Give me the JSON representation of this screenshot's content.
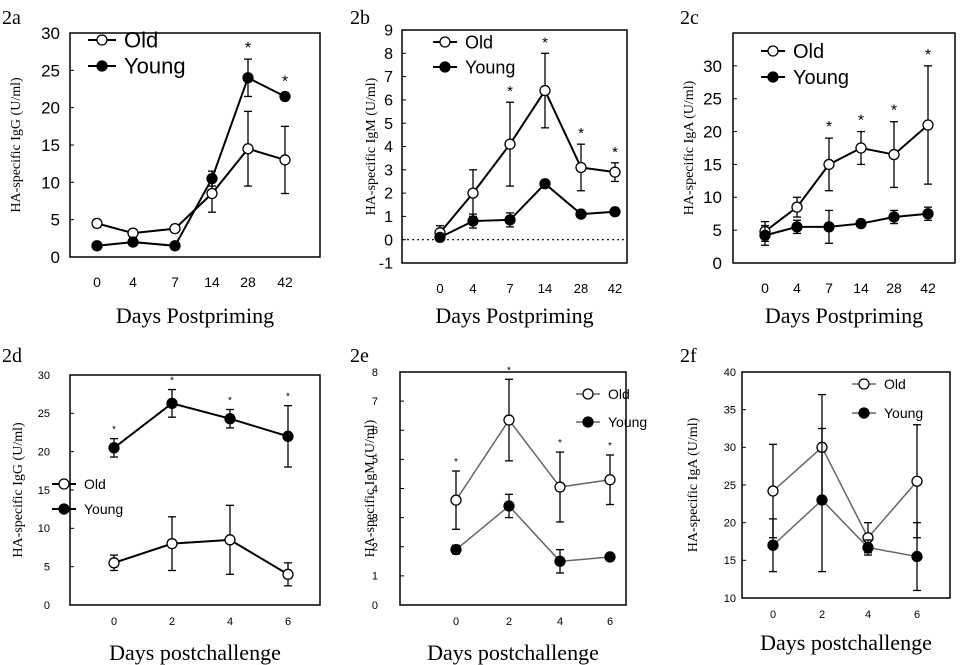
{
  "chart_data": [
    {
      "panel": "2a",
      "type": "line",
      "ylabel": "HA-specific IgG (U/ml)",
      "xlabel": "Days Postpriming",
      "categories": [
        "0",
        "4",
        "7",
        "14",
        "28",
        "42"
      ],
      "ylim": [
        0,
        30
      ],
      "yticks": [
        "0",
        "5",
        "10",
        "15",
        "20",
        "25",
        "30"
      ],
      "series": [
        {
          "name": "Old",
          "marker": "open",
          "values": [
            4.5,
            3.2,
            3.8,
            8.5,
            14.5,
            13
          ],
          "err": [
            0.5,
            0.5,
            0.5,
            2.5,
            5,
            4.5
          ]
        },
        {
          "name": "Young",
          "marker": "filled",
          "values": [
            1.5,
            2,
            1.5,
            10.5,
            24,
            21.5
          ],
          "err": [
            0.5,
            0.5,
            0.5,
            1,
            2.5,
            0.5
          ]
        }
      ],
      "stars": [
        "",
        "",
        "",
        "",
        "*",
        "*"
      ]
    },
    {
      "panel": "2b",
      "type": "line",
      "ylabel": "HA-specific IgM (U/ml)",
      "xlabel": "Days Postpriming",
      "categories": [
        "0",
        "4",
        "7",
        "14",
        "28",
        "42"
      ],
      "ylim": [
        -1,
        9
      ],
      "yticks": [
        "-1",
        "0",
        "1",
        "2",
        "3",
        "4",
        "5",
        "6",
        "7",
        "8",
        "9"
      ],
      "series": [
        {
          "name": "Old",
          "marker": "open",
          "values": [
            0.3,
            2,
            4.1,
            6.4,
            3.1,
            2.9
          ],
          "err": [
            0.3,
            1,
            1.8,
            1.6,
            1,
            0.4
          ]
        },
        {
          "name": "Young",
          "marker": "filled",
          "values": [
            0.1,
            0.8,
            0.85,
            2.4,
            1.1,
            1.2
          ],
          "err": [
            0.1,
            0.3,
            0.3,
            0.1,
            0.1,
            0.15
          ]
        }
      ],
      "stars": [
        "",
        "",
        "*",
        "*",
        "*",
        "*"
      ]
    },
    {
      "panel": "2c",
      "type": "line",
      "ylabel": "HA-specific IgA (U/ml)",
      "xlabel": "Days Postpriming",
      "categories": [
        "0",
        "4",
        "7",
        "14",
        "28",
        "42"
      ],
      "ylim": [
        0,
        35
      ],
      "yticks": [
        "0",
        "5",
        "10",
        "15",
        "20",
        "25",
        "30"
      ],
      "series": [
        {
          "name": "Old",
          "marker": "open",
          "values": [
            4.8,
            8.5,
            15,
            17.5,
            16.5,
            21
          ],
          "err": [
            1.5,
            1.5,
            4,
            2.5,
            5,
            9
          ]
        },
        {
          "name": "Young",
          "marker": "filled",
          "values": [
            4.2,
            5.5,
            5.5,
            6,
            7,
            7.5
          ],
          "err": [
            1.5,
            1,
            2.5,
            0.5,
            1,
            1
          ]
        }
      ],
      "stars": [
        "",
        "",
        "*",
        "*",
        "*",
        "*"
      ]
    },
    {
      "panel": "2d",
      "type": "line",
      "ylabel": "HA-specific IgG (U/ml)",
      "xlabel": "Days postchallenge",
      "categories": [
        "0",
        "2",
        "4",
        "6"
      ],
      "ylim": [
        0,
        30
      ],
      "yticks": [
        "0",
        "5",
        "10",
        "15",
        "20",
        "25",
        "30"
      ],
      "series": [
        {
          "name": "Old",
          "marker": "open",
          "values": [
            5.5,
            8,
            8.5,
            4
          ],
          "err": [
            1,
            3.5,
            4.5,
            1.5
          ]
        },
        {
          "name": "Young",
          "marker": "filled",
          "values": [
            20.5,
            26.3,
            24.3,
            22
          ],
          "err": [
            1.2,
            1.8,
            1.2,
            4
          ]
        }
      ],
      "stars": [
        "*",
        "*",
        "*",
        "*"
      ]
    },
    {
      "panel": "2e",
      "type": "line",
      "ylabel": "HA-specific IgM (U/ml)",
      "xlabel": "Days postchallenge",
      "categories": [
        "0",
        "2",
        "4",
        "6"
      ],
      "ylim": [
        0,
        8
      ],
      "yticks": [
        "0",
        "1",
        "2",
        "3",
        "4",
        "5",
        "6",
        "7",
        "8"
      ],
      "series": [
        {
          "name": "Old",
          "marker": "open",
          "values": [
            3.6,
            6.35,
            4.05,
            4.3
          ],
          "err": [
            1,
            1.4,
            1.2,
            0.85
          ]
        },
        {
          "name": "Young",
          "marker": "filled",
          "values": [
            1.9,
            3.4,
            1.5,
            1.65
          ],
          "err": [
            0.15,
            0.4,
            0.4,
            0.1
          ]
        }
      ],
      "stars": [
        "*",
        "*",
        "*",
        "*"
      ]
    },
    {
      "panel": "2f",
      "type": "line",
      "ylabel": "HA-specific IgA (U/ml)",
      "xlabel": "Days postchallenge",
      "categories": [
        "0",
        "2",
        "4",
        "6"
      ],
      "ylim": [
        10,
        40
      ],
      "yticks": [
        "10",
        "15",
        "20",
        "25",
        "30",
        "35",
        "40"
      ],
      "series": [
        {
          "name": "Old",
          "marker": "open",
          "values": [
            24.2,
            30,
            18,
            25.5
          ],
          "err": [
            6.2,
            7,
            2,
            7.5
          ]
        },
        {
          "name": "Young",
          "marker": "filled",
          "values": [
            17,
            23,
            16.7,
            15.5
          ],
          "err": [
            3.5,
            9.5,
            1,
            4.5
          ]
        }
      ],
      "stars": [
        "",
        "",
        "",
        ""
      ]
    }
  ]
}
